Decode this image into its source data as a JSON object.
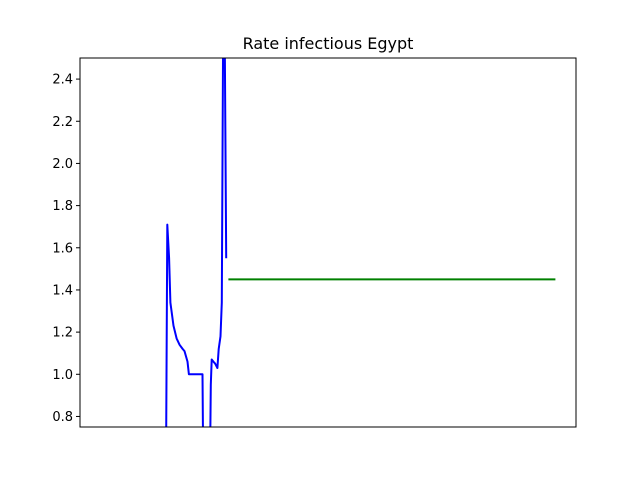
{
  "chart_data": {
    "type": "line",
    "title": "Rate infectious Egypt",
    "xlabel": "",
    "ylabel": "",
    "xlim": [
      0,
      113
    ],
    "ylim": [
      0.75,
      2.5
    ],
    "x_ticks_visible": false,
    "y_ticks": [
      0.8,
      1.0,
      1.2,
      1.4,
      1.6,
      1.8,
      2.0,
      2.2,
      2.4
    ],
    "y_tick_labels": [
      "0.8",
      "1.0",
      "1.2",
      "1.4",
      "1.6",
      "1.8",
      "2.0",
      "2.2",
      "2.4"
    ],
    "grid": false,
    "legend": "none",
    "series": [
      {
        "color": "#0000ff",
        "points": [
          [
            19.6,
            0.55
          ],
          [
            19.9,
            1.71
          ],
          [
            20.3,
            1.55
          ],
          [
            20.6,
            1.34
          ],
          [
            21.3,
            1.23
          ],
          [
            22.0,
            1.17
          ],
          [
            22.7,
            1.14
          ],
          [
            23.4,
            1.12
          ],
          [
            23.8,
            1.11
          ],
          [
            24.5,
            1.06
          ],
          [
            24.8,
            1.0
          ],
          [
            27.3,
            1.0
          ],
          [
            27.7,
            1.0
          ],
          [
            27.9,
            1.0
          ],
          [
            28.0,
            0.76
          ],
          [
            28.3,
            0.5
          ],
          [
            29.4,
            0.5
          ],
          [
            29.7,
            0.76
          ],
          [
            29.8,
            0.95
          ],
          [
            30.0,
            1.07
          ],
          [
            30.4,
            1.06
          ],
          [
            30.8,
            1.05
          ],
          [
            31.3,
            1.03
          ],
          [
            31.6,
            1.12
          ],
          [
            32.0,
            1.18
          ],
          [
            32.3,
            1.34
          ],
          [
            32.6,
            2.6
          ],
          [
            33.0,
            2.56
          ],
          [
            33.3,
            1.55
          ]
        ]
      },
      {
        "color": "#008000",
        "points": [
          [
            33.8,
            1.45
          ],
          [
            108.3,
            1.45
          ]
        ]
      }
    ]
  }
}
